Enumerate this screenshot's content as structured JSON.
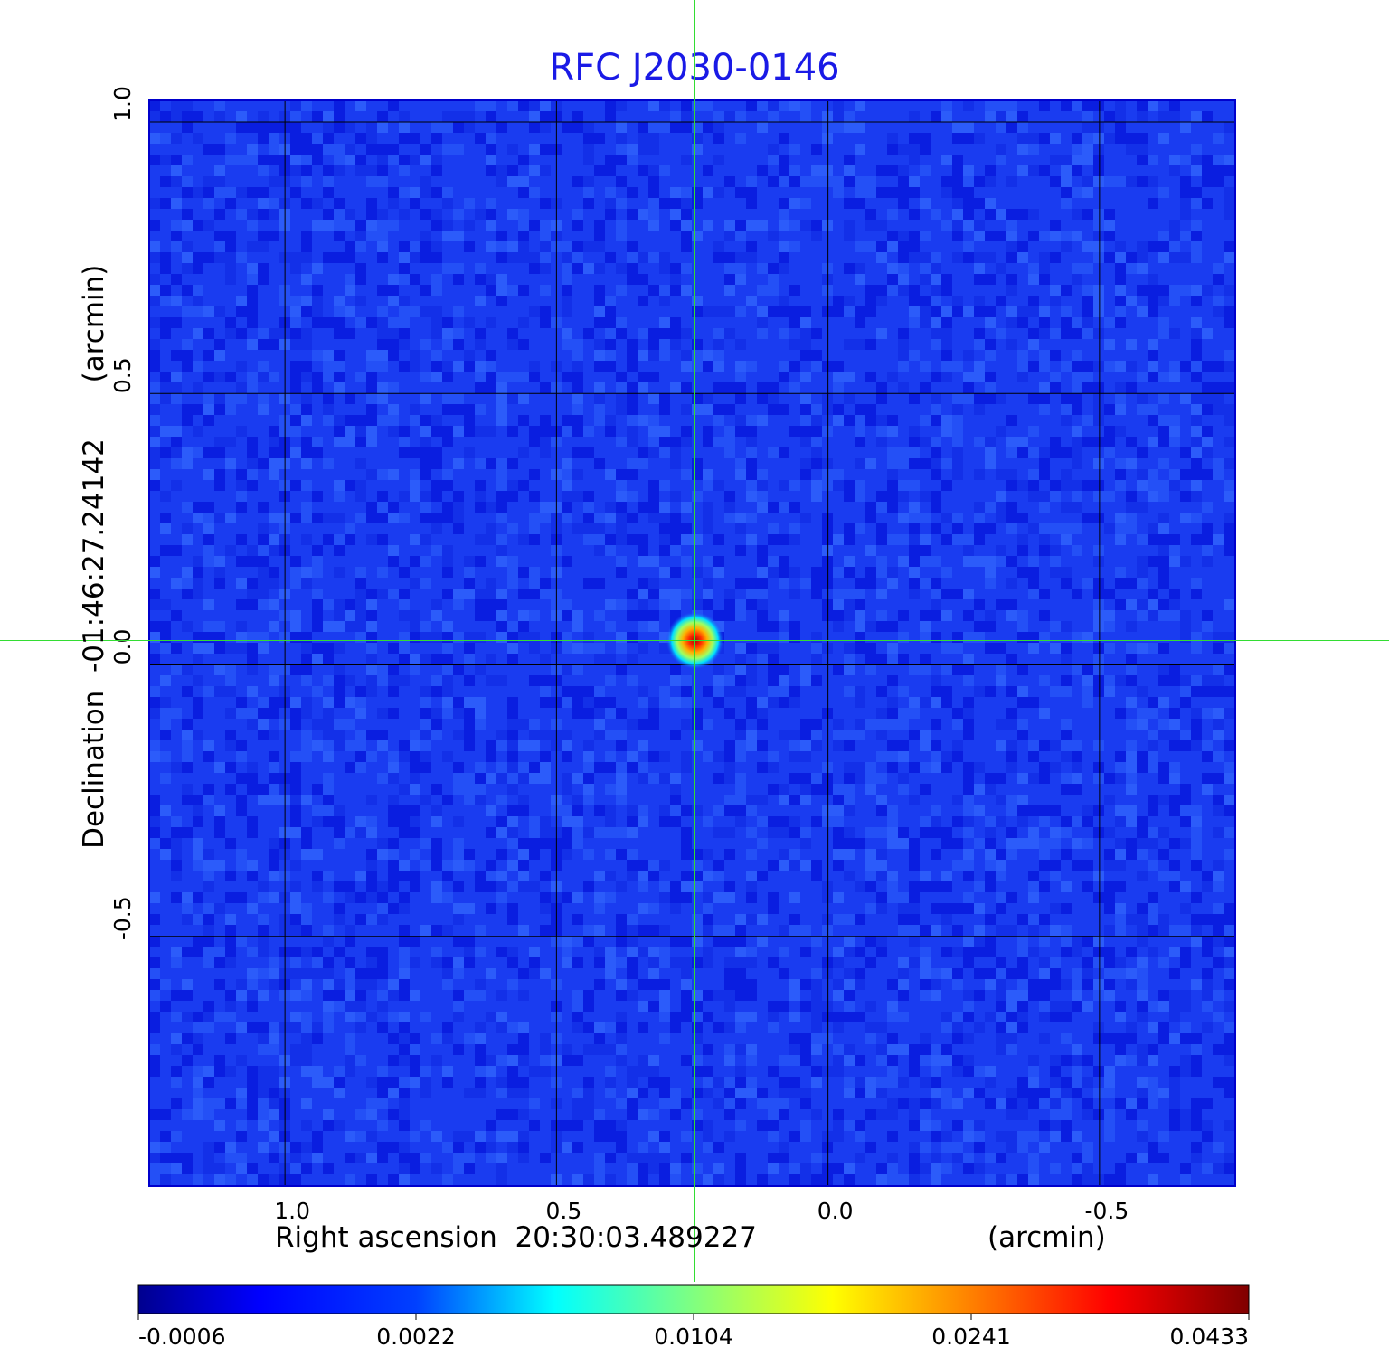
{
  "chart_data": {
    "type": "heatmap",
    "title": "RFC J2030-0146",
    "xlabel": "Right ascension  20:30:03.489227",
    "xunit": "(arcmin)",
    "ylabel": "Declination  -01:46:27.24142",
    "yunit": "(arcmin)",
    "x_ticks": [
      "1.0",
      "0.5",
      "0.0",
      "-0.5"
    ],
    "x_tick_values": [
      1.0,
      0.5,
      0.0,
      -0.5
    ],
    "y_ticks": [
      "1.0",
      "0.5",
      "0.0",
      "-0.5"
    ],
    "y_tick_values": [
      1.0,
      0.5,
      0.0,
      -0.5
    ],
    "xlim": [
      1.25,
      -0.75
    ],
    "ylim": [
      -0.96,
      1.04
    ],
    "grid": true,
    "crosshair": {
      "x": 0.245,
      "y": 0.045
    },
    "source_peak": {
      "x": 0.245,
      "y": 0.045,
      "value": 0.0433
    },
    "colormap": "jet",
    "colorbar_ticks": [
      "-0.0006",
      "0.0022",
      "0.0104",
      "0.0241",
      "0.0433"
    ],
    "colorbar_values": [
      -0.0006,
      0.0022,
      0.0104,
      0.0241,
      0.0433
    ],
    "colors": {
      "title": "#1a1ae6",
      "crosshair": "#33dd33",
      "grid": "#000000",
      "background": "#1a3cf0"
    }
  }
}
